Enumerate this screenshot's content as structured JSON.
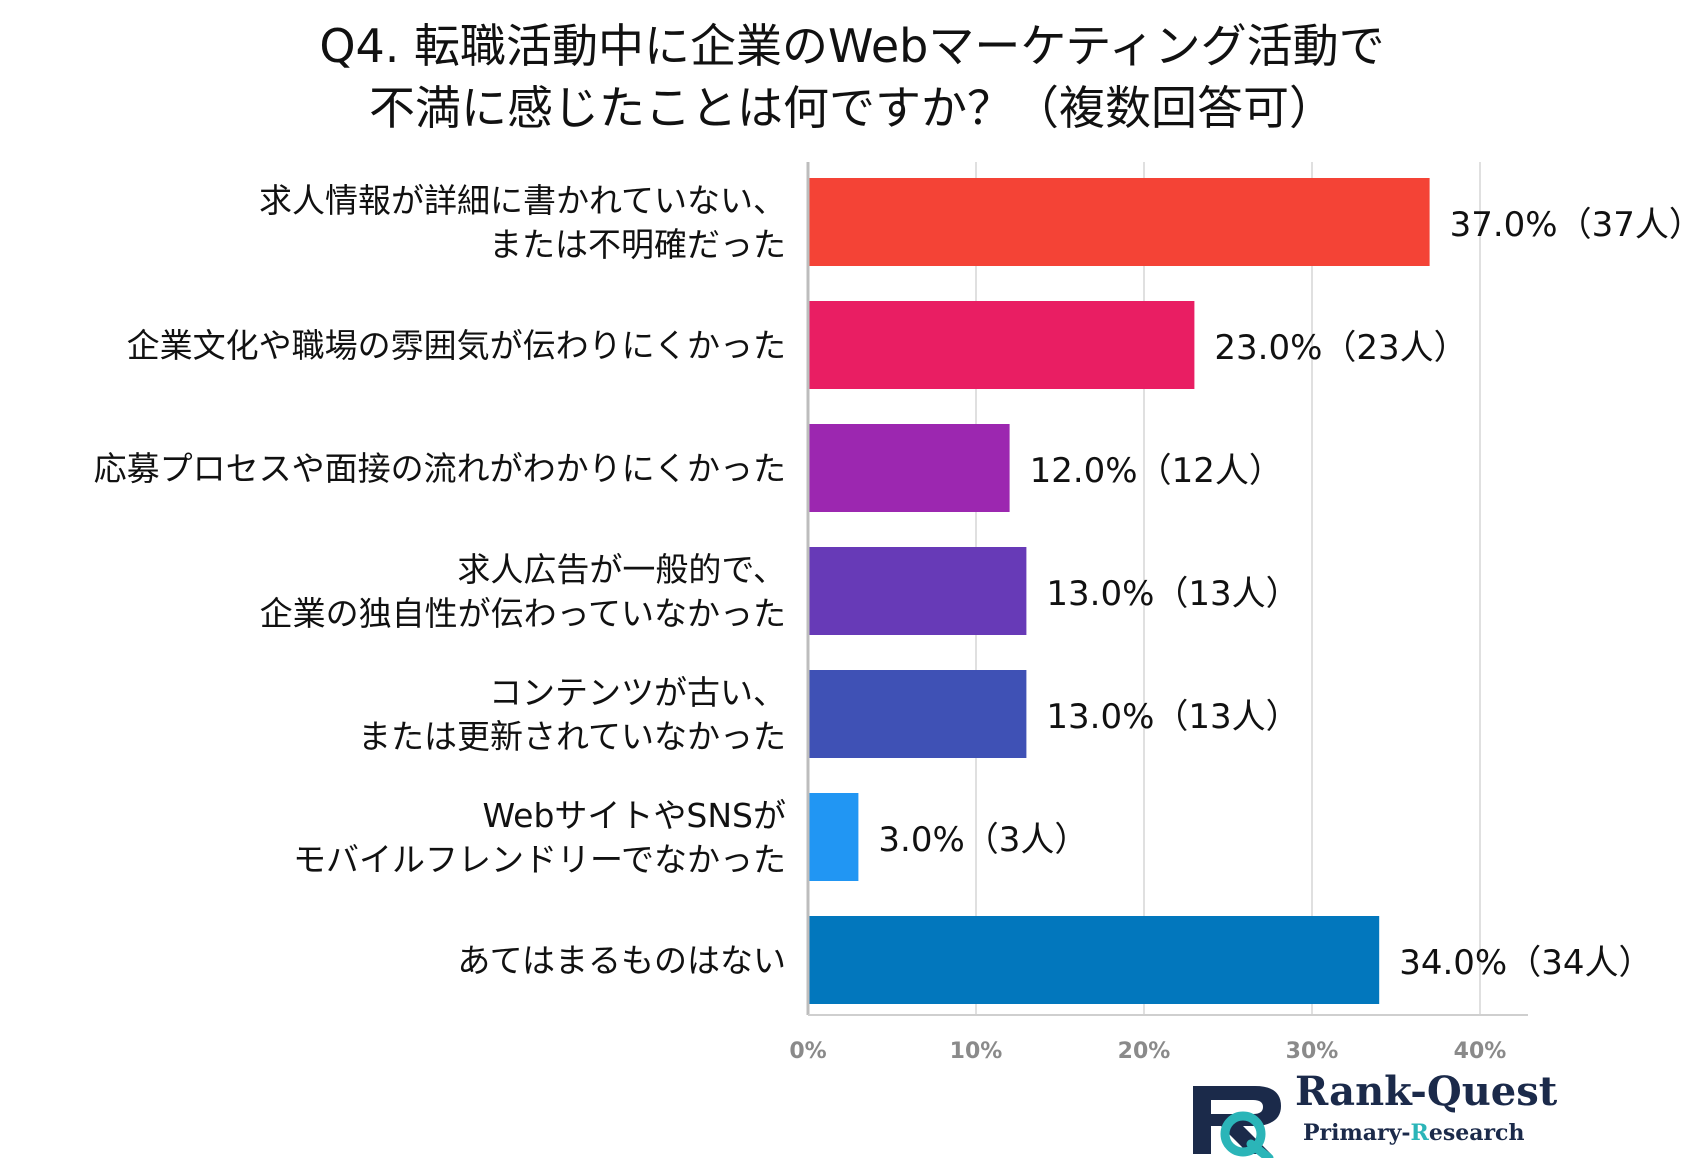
{
  "chart_data": {
    "type": "bar",
    "orientation": "horizontal",
    "title_line1": "Q4. 転職活動中に企業のWebマーケティング活動で",
    "title_line2": "不満に感じたことは何ですか？（複数回答可）",
    "categories": [
      [
        "求人情報が詳細に書かれていない、",
        "または不明確だった"
      ],
      [
        "企業文化や職場の雰囲気が伝わりにくかった"
      ],
      [
        "応募プロセスや面接の流れがわかりにくかった"
      ],
      [
        "求人広告が一般的で、",
        "企業の独自性が伝わっていなかった"
      ],
      [
        "コンテンツが古い、",
        "または更新されていなかった"
      ],
      [
        "WebサイトやSNSが",
        "モバイルフレンドリーでなかった"
      ],
      [
        "あてはまるものはない"
      ]
    ],
    "values": [
      37.0,
      23.0,
      12.0,
      13.0,
      13.0,
      3.0,
      34.0
    ],
    "data_labels": [
      "37.0%（37人）",
      "23.0%（23人）",
      "12.0%（12人）",
      "13.0%（13人）",
      "13.0%（13人）",
      "3.0%（3人）",
      "34.0%（34人）"
    ],
    "colors": [
      "#f44336",
      "#e91e63",
      "#9c27b0",
      "#673ab7",
      "#3f51b5",
      "#2196f3",
      "#0277bd"
    ],
    "xlim": [
      0,
      40
    ],
    "xticks": [
      "0%",
      "10%",
      "20%",
      "30%",
      "40%"
    ],
    "grid": true
  },
  "logo": {
    "name": "Rank-Quest",
    "sub_prefix": "Primary-",
    "sub_accent": "R",
    "sub_suffix": "esearch",
    "colors": {
      "navy": "#1b2a4a",
      "teal": "#2bb5b8"
    }
  }
}
